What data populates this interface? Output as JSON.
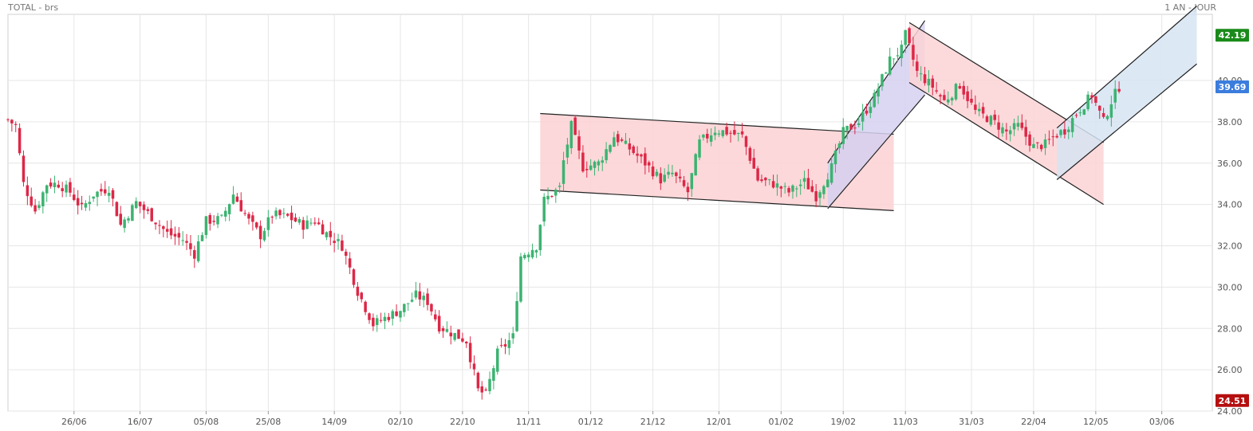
{
  "header": {
    "title": "TOTAL - brs",
    "period": "1 AN - JOUR"
  },
  "colors": {
    "up": "#3cb371",
    "down": "#dc2847",
    "grid": "#e6e6e6",
    "zone_red": "#fcd1d4",
    "zone_blue": "#d6e4f2",
    "zone_purple": "#d6d0f0"
  },
  "chart_data": {
    "type": "candlestick",
    "ylim": [
      24.0,
      43.2
    ],
    "yticks": [
      24,
      26,
      28,
      30,
      32,
      34,
      36,
      38,
      40
    ],
    "ytick_labels": [
      "24.00",
      "26.00",
      "28.00",
      "30.00",
      "32.00",
      "34.00",
      "36.00",
      "38.00",
      "40.00"
    ],
    "grid": true,
    "x_range": [
      0,
      310
    ],
    "xticks": [
      {
        "i": 17,
        "label": "26/06"
      },
      {
        "i": 34,
        "label": "16/07"
      },
      {
        "i": 51,
        "label": "05/08"
      },
      {
        "i": 67,
        "label": "25/08"
      },
      {
        "i": 84,
        "label": "14/09"
      },
      {
        "i": 101,
        "label": "02/10"
      },
      {
        "i": 117,
        "label": "22/10"
      },
      {
        "i": 134,
        "label": "11/11"
      },
      {
        "i": 150,
        "label": "01/12"
      },
      {
        "i": 166,
        "label": "21/12"
      },
      {
        "i": 183,
        "label": "12/01"
      },
      {
        "i": 199,
        "label": "01/02"
      },
      {
        "i": 215,
        "label": "19/02"
      },
      {
        "i": 231,
        "label": "11/03"
      },
      {
        "i": 248,
        "label": "31/03"
      },
      {
        "i": 264,
        "label": "22/04"
      },
      {
        "i": 280,
        "label": "12/05"
      },
      {
        "i": 297,
        "label": "03/06"
      }
    ],
    "price_badges": [
      {
        "value": 42.19,
        "label": "42.19",
        "color": "#1a8a1a"
      },
      {
        "value": 39.69,
        "label": "39.69",
        "color": "#3b7ddd"
      },
      {
        "value": 24.51,
        "label": "24.51",
        "color": "#b50f0f"
      }
    ],
    "anchors": [
      [
        0,
        38.1,
        1
      ],
      [
        2,
        37.8,
        -1
      ],
      [
        4,
        35.0,
        -1
      ],
      [
        7,
        33.7,
        -1
      ],
      [
        10,
        35.0,
        1
      ],
      [
        13,
        35.0,
        1
      ],
      [
        16,
        34.6,
        -1
      ],
      [
        19,
        33.8,
        -1
      ],
      [
        22,
        34.5,
        1
      ],
      [
        26,
        34.8,
        1
      ],
      [
        29,
        33.0,
        -1
      ],
      [
        33,
        34.1,
        1
      ],
      [
        37,
        33.4,
        -1
      ],
      [
        41,
        32.6,
        -1
      ],
      [
        45,
        32.3,
        -1
      ],
      [
        48,
        31.6,
        -1
      ],
      [
        51,
        33.2,
        1
      ],
      [
        55,
        33.3,
        1
      ],
      [
        58,
        34.5,
        1
      ],
      [
        62,
        33.2,
        -1
      ],
      [
        65,
        32.5,
        -1
      ],
      [
        68,
        33.5,
        1
      ],
      [
        72,
        33.4,
        -1
      ],
      [
        76,
        33.0,
        -1
      ],
      [
        79,
        33.2,
        1
      ],
      [
        82,
        32.6,
        -1
      ],
      [
        86,
        32.0,
        -1
      ],
      [
        90,
        29.8,
        -1
      ],
      [
        94,
        28.2,
        -1
      ],
      [
        98,
        28.6,
        1
      ],
      [
        101,
        28.9,
        1
      ],
      [
        105,
        29.6,
        1
      ],
      [
        108,
        29.3,
        -1
      ],
      [
        111,
        28.1,
        -1
      ],
      [
        115,
        27.7,
        -1
      ],
      [
        118,
        27.4,
        1
      ],
      [
        121,
        25.0,
        -1
      ],
      [
        123,
        24.8,
        1
      ],
      [
        126,
        26.8,
        1
      ],
      [
        130,
        27.6,
        1
      ],
      [
        132,
        31.5,
        1
      ],
      [
        136,
        32.0,
        1
      ],
      [
        138,
        34.2,
        1
      ],
      [
        142,
        34.8,
        1
      ],
      [
        143,
        36.1,
        1
      ],
      [
        145,
        37.8,
        1
      ],
      [
        148,
        35.8,
        -1
      ],
      [
        152,
        36.0,
        1
      ],
      [
        156,
        37.3,
        1
      ],
      [
        160,
        36.7,
        -1
      ],
      [
        164,
        36.0,
        -1
      ],
      [
        168,
        35.2,
        1
      ],
      [
        171,
        35.5,
        1
      ],
      [
        175,
        34.6,
        -1
      ],
      [
        178,
        37.0,
        1
      ],
      [
        182,
        37.6,
        1
      ],
      [
        185,
        37.5,
        1
      ],
      [
        189,
        37.3,
        -1
      ],
      [
        193,
        35.2,
        -1
      ],
      [
        197,
        35.0,
        -1
      ],
      [
        201,
        34.6,
        -1
      ],
      [
        205,
        35.1,
        1
      ],
      [
        208,
        34.4,
        -1
      ],
      [
        212,
        35.8,
        1
      ],
      [
        215,
        37.5,
        1
      ],
      [
        219,
        38.0,
        1
      ],
      [
        223,
        39.2,
        1
      ],
      [
        227,
        41.0,
        1
      ],
      [
        230,
        41.5,
        1
      ],
      [
        231,
        42.2,
        1
      ],
      [
        234,
        40.4,
        -1
      ],
      [
        238,
        39.7,
        -1
      ],
      [
        241,
        39.0,
        -1
      ],
      [
        245,
        39.8,
        1
      ],
      [
        249,
        38.5,
        -1
      ],
      [
        253,
        38.1,
        -1
      ],
      [
        257,
        37.5,
        -1
      ],
      [
        260,
        37.8,
        1
      ],
      [
        264,
        36.8,
        -1
      ],
      [
        267,
        36.9,
        1
      ],
      [
        270,
        37.4,
        1
      ],
      [
        272,
        37.6,
        -1
      ],
      [
        275,
        38.4,
        1
      ],
      [
        279,
        39.3,
        1
      ],
      [
        282,
        38.0,
        -1
      ],
      [
        284,
        39.0,
        1
      ],
      [
        286,
        39.7,
        1
      ]
    ]
  }
}
